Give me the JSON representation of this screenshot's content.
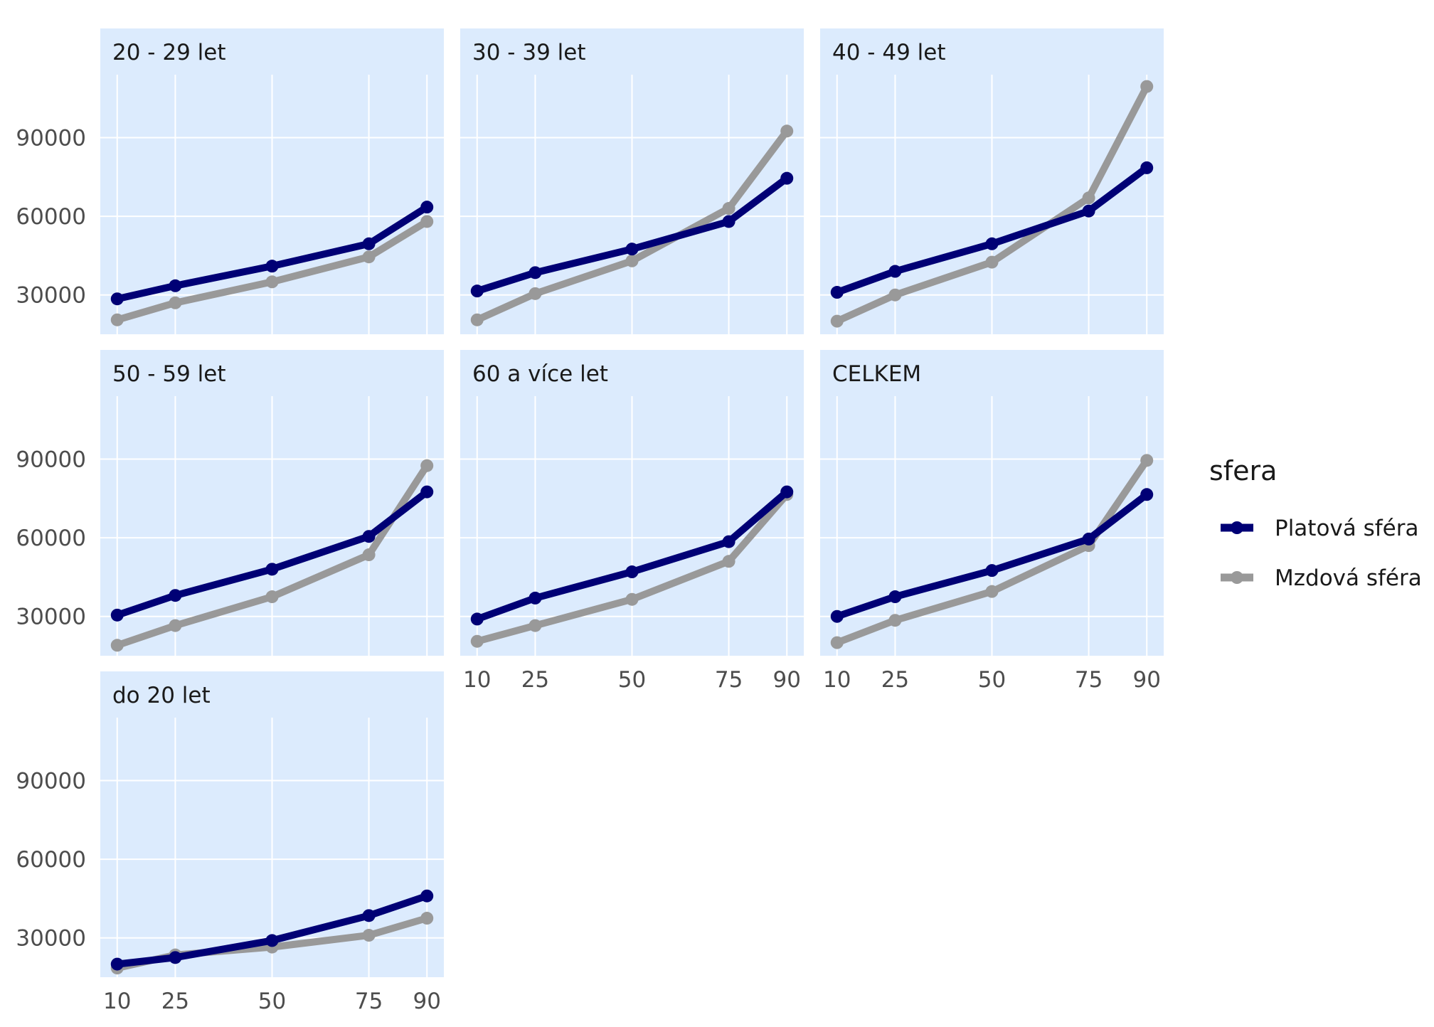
{
  "chart_data": {
    "type": "line",
    "title": "",
    "xlabel": "",
    "ylabel": "",
    "x": [
      10,
      25,
      50,
      75,
      90
    ],
    "x_ticks": [
      "10",
      "25",
      "50",
      "75",
      "90"
    ],
    "y_ticks": [
      "30000",
      "60000",
      "90000"
    ],
    "y_tick_values": [
      30000,
      60000,
      90000
    ],
    "xlim": [
      6,
      94
    ],
    "ylim": [
      15000,
      114000
    ],
    "grid": true,
    "legend": {
      "title": "sfera",
      "placement": "right",
      "entries": [
        "Platová sféra",
        "Mzdová sféra"
      ]
    },
    "colors": {
      "Platová sféra": "#000075",
      "Mzdová sféra": "#999999",
      "panel_background": "#dcebfd",
      "grid": "#ffffff"
    },
    "panels": [
      {
        "label": "20 - 29 let",
        "series": [
          {
            "name": "Platová sféra",
            "values": [
              28500,
              33500,
              41000,
              49500,
              63500
            ]
          },
          {
            "name": "Mzdová sféra",
            "values": [
              20500,
              27000,
              35000,
              44500,
              58000
            ]
          }
        ]
      },
      {
        "label": "30 - 39 let",
        "series": [
          {
            "name": "Platová sféra",
            "values": [
              31500,
              38500,
              47500,
              58000,
              74500
            ]
          },
          {
            "name": "Mzdová sféra",
            "values": [
              20500,
              30500,
              43000,
              63000,
              92500
            ]
          }
        ]
      },
      {
        "label": "40 - 49 let",
        "series": [
          {
            "name": "Platová sféra",
            "values": [
              31000,
              39000,
              49500,
              62000,
              78500
            ]
          },
          {
            "name": "Mzdová sféra",
            "values": [
              20000,
              30000,
              42500,
              67000,
              109500
            ]
          }
        ]
      },
      {
        "label": "50 - 59 let",
        "series": [
          {
            "name": "Platová sféra",
            "values": [
              30500,
              38000,
              48000,
              60500,
              77500
            ]
          },
          {
            "name": "Mzdová sféra",
            "values": [
              19000,
              26500,
              37500,
              53500,
              87500
            ]
          }
        ]
      },
      {
        "label": "60 a více let",
        "series": [
          {
            "name": "Platová sféra",
            "values": [
              29000,
              37000,
              47000,
              58500,
              77500
            ]
          },
          {
            "name": "Mzdová sféra",
            "values": [
              20500,
              26500,
              36500,
              51000,
              76500
            ]
          }
        ]
      },
      {
        "label": "CELKEM",
        "series": [
          {
            "name": "Platová sféra",
            "values": [
              30000,
              37500,
              47500,
              59500,
              76500
            ]
          },
          {
            "name": "Mzdová sféra",
            "values": [
              20000,
              28500,
              39500,
              57000,
              89500
            ]
          }
        ]
      },
      {
        "label": "do 20 let",
        "series": [
          {
            "name": "Platová sféra",
            "values": [
              20000,
              22500,
              29000,
              38500,
              46000
            ]
          },
          {
            "name": "Mzdová sféra",
            "values": [
              18500,
              23500,
              26500,
              31000,
              37500
            ]
          }
        ]
      }
    ]
  }
}
